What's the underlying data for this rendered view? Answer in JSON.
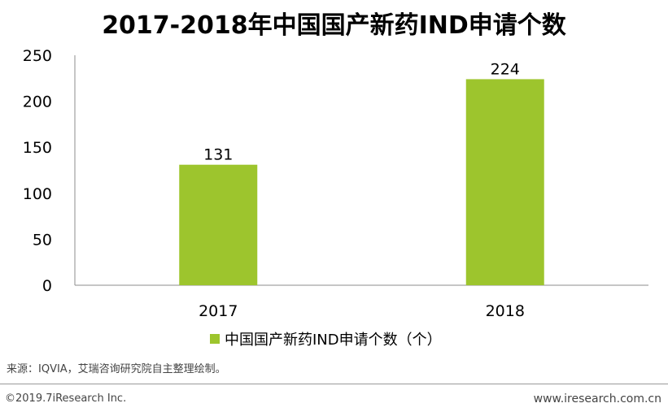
{
  "chart_data": {
    "type": "bar",
    "title": "2017-2018年中国国产新药IND申请个数",
    "categories": [
      "2017",
      "2018"
    ],
    "series": [
      {
        "name": "中国国产新药IND申请个数（个）",
        "values": [
          131,
          224
        ],
        "color": "#9dc52d"
      }
    ],
    "ylim": [
      0,
      250
    ],
    "yticks": [
      0,
      50,
      100,
      150,
      200,
      250
    ],
    "grid": false,
    "legend": "bottom",
    "xlabel": "",
    "ylabel": ""
  },
  "footer": {
    "source": "来源：IQVIA，艾瑞咨询研究院自主整理绘制。",
    "copyright": "©2019.7iResearch Inc.",
    "website": "www.iresearch.com.cn"
  }
}
